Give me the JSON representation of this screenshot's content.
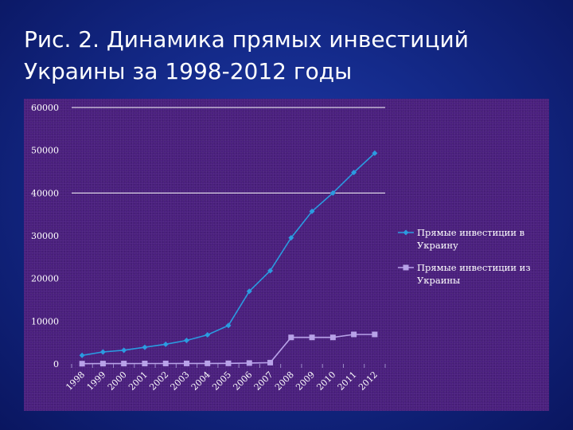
{
  "slide": {
    "title_line1": "Рис. 2. Динамика прямых инвестиций",
    "title_line2": "Украины за 1998-2012 годы"
  },
  "colors": {
    "series_in": "#2b9be0",
    "series_out": "#b8a2e8",
    "gridline": "#ffffff",
    "panel": "#4a1f7e"
  },
  "chart_data": {
    "type": "line",
    "title": "",
    "xlabel": "",
    "ylabel": "",
    "categories": [
      "1998",
      "1999",
      "2000",
      "2001",
      "2002",
      "2003",
      "2004",
      "2005",
      "2006",
      "2007",
      "2008",
      "2009",
      "2010",
      "2011",
      "2012"
    ],
    "ylim": [
      0,
      60000
    ],
    "yticks": [
      "0",
      "10000",
      "20000",
      "30000",
      "40000",
      "50000",
      "60000"
    ],
    "grid": "horizontal gridlines at 40000 and 60000",
    "legend_position": "right",
    "series": [
      {
        "name": "Прямые инвестиции в Украину",
        "marker": "diamond",
        "values": [
          2000,
          2800,
          3200,
          3900,
          4600,
          5500,
          6800,
          9000,
          17000,
          21800,
          29500,
          35700,
          40000,
          44800,
          49300
        ]
      },
      {
        "name": "Прямые инвестиции из Украины",
        "marker": "square",
        "values": [
          50,
          70,
          80,
          90,
          100,
          110,
          120,
          130,
          200,
          300,
          6200,
          6200,
          6200,
          6900,
          6900
        ]
      }
    ]
  }
}
